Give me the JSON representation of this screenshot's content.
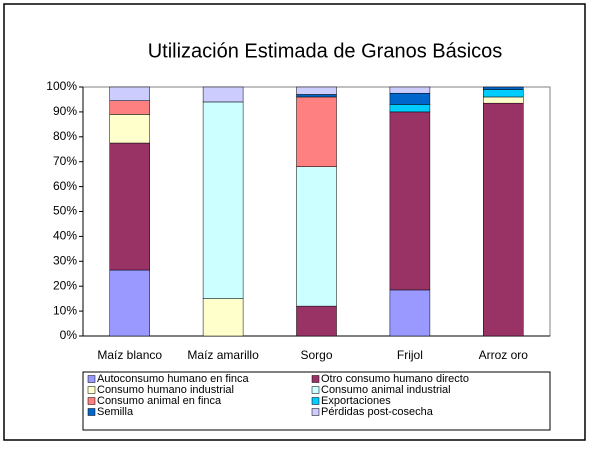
{
  "chart_data": {
    "type": "stacked_bar",
    "title": "Utilización Estimada de Granos Básicos",
    "categories": [
      "Maíz blanco",
      "Maíz amarillo",
      "Sorgo",
      "Frijol",
      "Arroz oro"
    ],
    "series": [
      {
        "name": "Autoconsumo humano en finca",
        "color": "#9999ff",
        "values": [
          26.5,
          0,
          0,
          18.5,
          0
        ]
      },
      {
        "name": "Otro consumo humano directo",
        "color": "#993366",
        "values": [
          51,
          0,
          12,
          71.5,
          93.5
        ]
      },
      {
        "name": "Consumo humano industrial",
        "color": "#ffffcc",
        "values": [
          11.5,
          15,
          0,
          0,
          2.5
        ]
      },
      {
        "name": "Consumo animal industrial",
        "color": "#ccffff",
        "values": [
          0,
          79,
          56,
          0,
          0
        ]
      },
      {
        "name": "Consumo animal en finca",
        "color": "#ff8080",
        "values": [
          5.5,
          0,
          28,
          0,
          0
        ]
      },
      {
        "name": "Exportaciones",
        "color": "#00ccff",
        "values": [
          0,
          0,
          0,
          3,
          3
        ]
      },
      {
        "name": "Semilla",
        "color": "#0066cc",
        "values": [
          0,
          0,
          1,
          4.5,
          1
        ]
      },
      {
        "name": "Pérdidas post-cosecha",
        "color": "#ccccff",
        "values": [
          5.5,
          6,
          3,
          2.5,
          0
        ]
      }
    ],
    "ylim": [
      0,
      100
    ],
    "yticks": [
      {
        "value": 0,
        "label": "0%"
      },
      {
        "value": 10,
        "label": "10%"
      },
      {
        "value": 20,
        "label": "20%"
      },
      {
        "value": 30,
        "label": "30%"
      },
      {
        "value": 40,
        "label": "40%"
      },
      {
        "value": 50,
        "label": "50%"
      },
      {
        "value": 60,
        "label": "60%"
      },
      {
        "value": 70,
        "label": "70%"
      },
      {
        "value": 80,
        "label": "80%"
      },
      {
        "value": 90,
        "label": "90%"
      },
      {
        "value": 100,
        "label": "100%"
      }
    ],
    "grid": false
  }
}
